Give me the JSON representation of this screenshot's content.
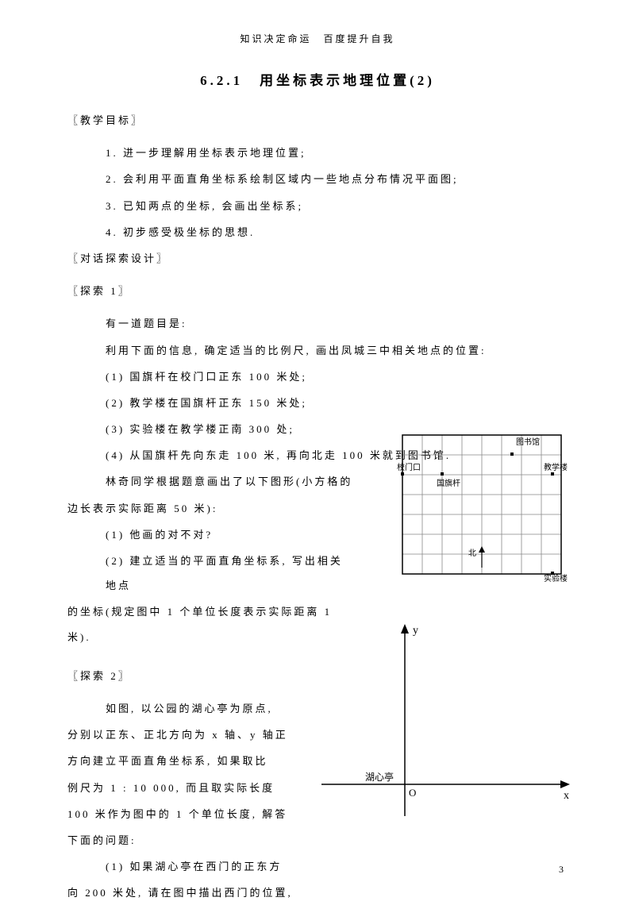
{
  "header": "知识决定命运　百度提升自我",
  "title": "6.2.1　用坐标表示地理位置(2)",
  "sec_objectives": "〖教学目标〗",
  "obj1": "1. 进一步理解用坐标表示地理位置;",
  "obj2": "2. 会利用平面直角坐标系绘制区域内一些地点分布情况平面图;",
  "obj3": "3. 已知两点的坐标, 会画出坐标系;",
  "obj4": "4. 初步感受极坐标的思想.",
  "sec_dialog": "〖对话探索设计〗",
  "sec_explore1": "〖探索 1〗",
  "e1_intro": "有一道题目是:",
  "e1_desc": "利用下面的信息, 确定适当的比例尺, 画出凤城三中相关地点的位置:",
  "e1_p1": "(1) 国旗杆在校门口正东 100 米处;",
  "e1_p2": "(2) 教学楼在国旗杆正东 150 米处;",
  "e1_p3": "(3) 实验楼在教学楼正南 300 处;",
  "e1_p4": "(4) 从国旗杆先向东走 100 米, 再向北走 100 米就到图书馆.",
  "e1_lin": "林奇同学根据题意画出了以下图形(小方格的",
  "e1_lin2": "边长表示实际距离 50 米):",
  "e1_q1": "(1) 他画的对不对?",
  "e1_q2a": "(2) 建立适当的平面直角坐标系, 写出相关地点",
  "e1_q2b": "的坐标(规定图中 1 个单位长度表示实际距离 1 米).",
  "sec_explore2": "〖探索 2〗",
  "e2_l1": "如图, 以公园的湖心亭为原点,",
  "e2_l2": "分别以正东、正北方向为 x 轴、y 轴正",
  "e2_l3": "方向建立平面直角坐标系, 如果取比",
  "e2_l4": "例尺为 1 : 10 000, 而且取实际长度",
  "e2_l5": "100 米作为图中的 1 个单位长度, 解答",
  "e2_l6": "下面的问题:",
  "e2_q1a": "(1) 如果湖心亭在西门的正东方",
  "e2_q1b": "向 200 米处, 请在图中描出西门的位置,",
  "page_num": "3",
  "grid": {
    "cols": 8,
    "rows": 7,
    "cell": 25,
    "border_color": "#000000",
    "line_color": "#888888",
    "labels": {
      "library": "图书馆",
      "gate": "校门口",
      "flag": "国旗杆",
      "teach": "教学楼",
      "north": "北",
      "lab": "实验楼"
    }
  },
  "coord": {
    "origin_label": "湖心亭",
    "o_label": "O",
    "x_label": "x",
    "y_label": "y",
    "axis_color": "#000000"
  }
}
